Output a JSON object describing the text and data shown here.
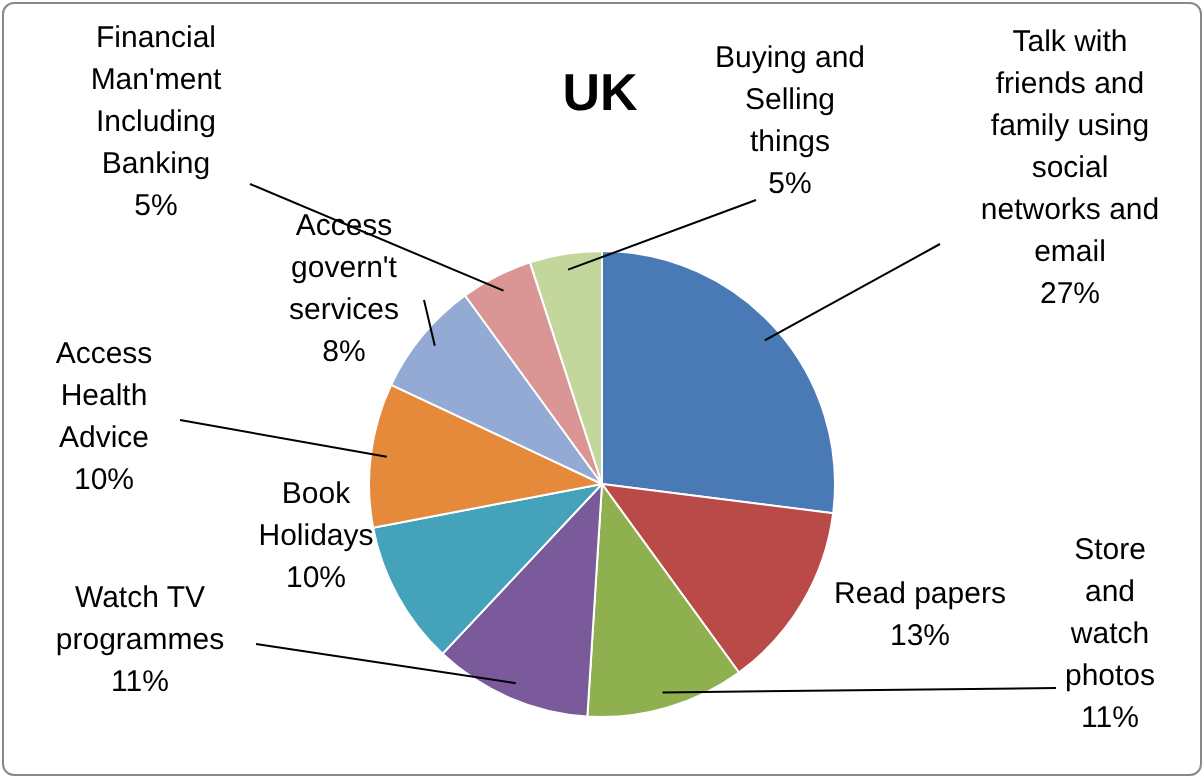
{
  "chart_data": {
    "type": "pie",
    "title": "UK",
    "categories": [
      "Talk with friends and family using social networks and email",
      "Read papers",
      "Store and watch photos",
      "Watch TV programmes",
      "Book Holidays",
      "Access Health Advice",
      "Access govern't services",
      "Financial Man'ment Including Banking",
      "Buying and Selling things"
    ],
    "values": [
      27,
      13,
      11,
      11,
      10,
      10,
      8,
      5,
      5
    ],
    "colors": [
      "#4a7ab5",
      "#b94a48",
      "#8fb04f",
      "#7a5a9b",
      "#45a2bb",
      "#e48a3a",
      "#93aad4",
      "#d99694",
      "#c3d69b"
    ],
    "value_labels": [
      "27%",
      "13%",
      "11%",
      "11%",
      "10%",
      "10%",
      "8%",
      "5%",
      "5%"
    ],
    "legend": false
  }
}
